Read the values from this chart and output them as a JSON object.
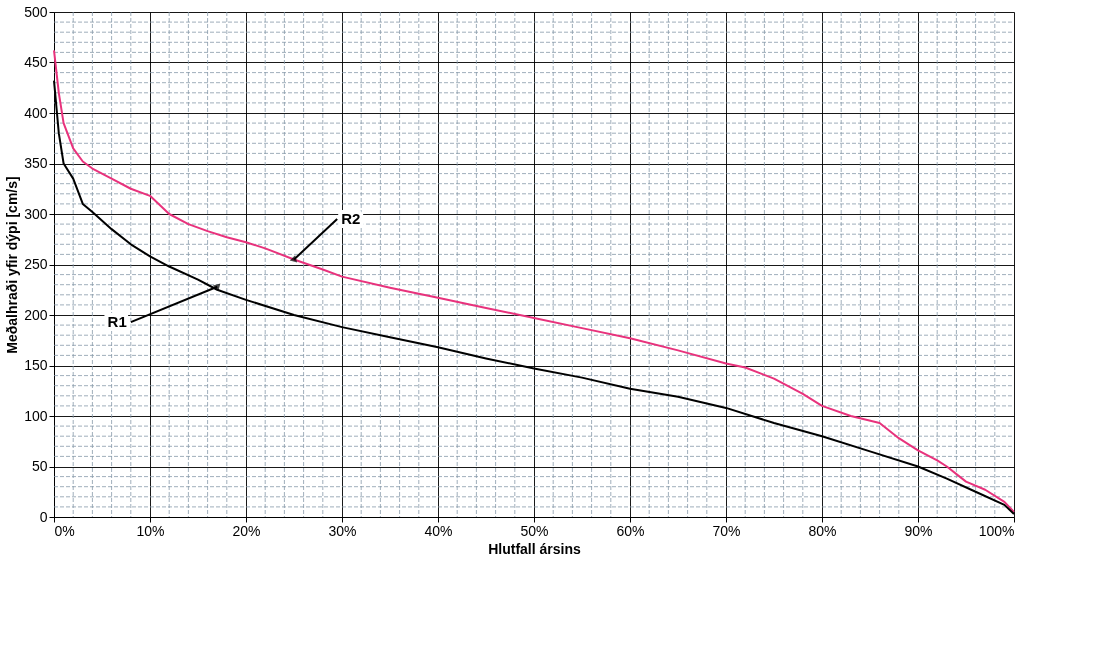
{
  "chart_data": {
    "type": "line",
    "xlabel": "Hlutfall ársins",
    "ylabel": "Meðalhraði yfir dýpi [cm/s]",
    "xlim": [
      0,
      100
    ],
    "ylim": [
      0,
      500
    ],
    "xticks": [
      {
        "value": 0,
        "label": "0%"
      },
      {
        "value": 10,
        "label": "10%"
      },
      {
        "value": 20,
        "label": "20%"
      },
      {
        "value": 30,
        "label": "30%"
      },
      {
        "value": 40,
        "label": "40%"
      },
      {
        "value": 50,
        "label": "50%"
      },
      {
        "value": 60,
        "label": "60%"
      },
      {
        "value": 70,
        "label": "70%"
      },
      {
        "value": 80,
        "label": "80%"
      },
      {
        "value": 90,
        "label": "90%"
      },
      {
        "value": 100,
        "label": "100%"
      }
    ],
    "yticks": [
      0,
      50,
      100,
      150,
      200,
      250,
      300,
      350,
      400,
      450,
      500
    ],
    "grid": true,
    "legend": false,
    "marker": "none",
    "line_style": "solid",
    "series": [
      {
        "color": "#e8327c",
        "x": [
          0,
          0.5,
          1,
          2,
          3,
          4,
          6,
          8,
          10,
          12,
          14,
          16,
          18,
          20,
          22,
          25,
          28,
          30,
          35,
          40,
          45,
          50,
          55,
          60,
          65,
          70,
          72,
          75,
          78,
          80,
          83,
          86,
          88,
          90,
          92,
          93,
          95,
          97,
          99,
          100
        ],
        "values": [
          462,
          420,
          390,
          365,
          352,
          345,
          335,
          325,
          318,
          300,
          290,
          283,
          277,
          272,
          266,
          255,
          245,
          238,
          227,
          217,
          207,
          197,
          187,
          177,
          165,
          152,
          148,
          137,
          122,
          110,
          100,
          93,
          78,
          66,
          56,
          50,
          35,
          27,
          15,
          5
        ]
      },
      {
        "color": "#000000",
        "x": [
          0,
          0.5,
          1,
          2,
          3,
          4,
          6,
          8,
          10,
          12,
          15,
          17,
          20,
          25,
          30,
          35,
          40,
          45,
          50,
          55,
          60,
          65,
          70,
          75,
          80,
          85,
          90,
          93,
          96,
          99,
          100
        ],
        "values": [
          432,
          380,
          350,
          335,
          310,
          302,
          285,
          270,
          258,
          248,
          235,
          225,
          215,
          200,
          188,
          178,
          168,
          157,
          147,
          138,
          127,
          119,
          108,
          93,
          80,
          65,
          50,
          38,
          25,
          12,
          3
        ]
      }
    ],
    "annotations": [
      {
        "text": "R2",
        "x": 25,
        "y": 255
      },
      {
        "text": "R1",
        "x": 17,
        "y": 228
      }
    ]
  }
}
